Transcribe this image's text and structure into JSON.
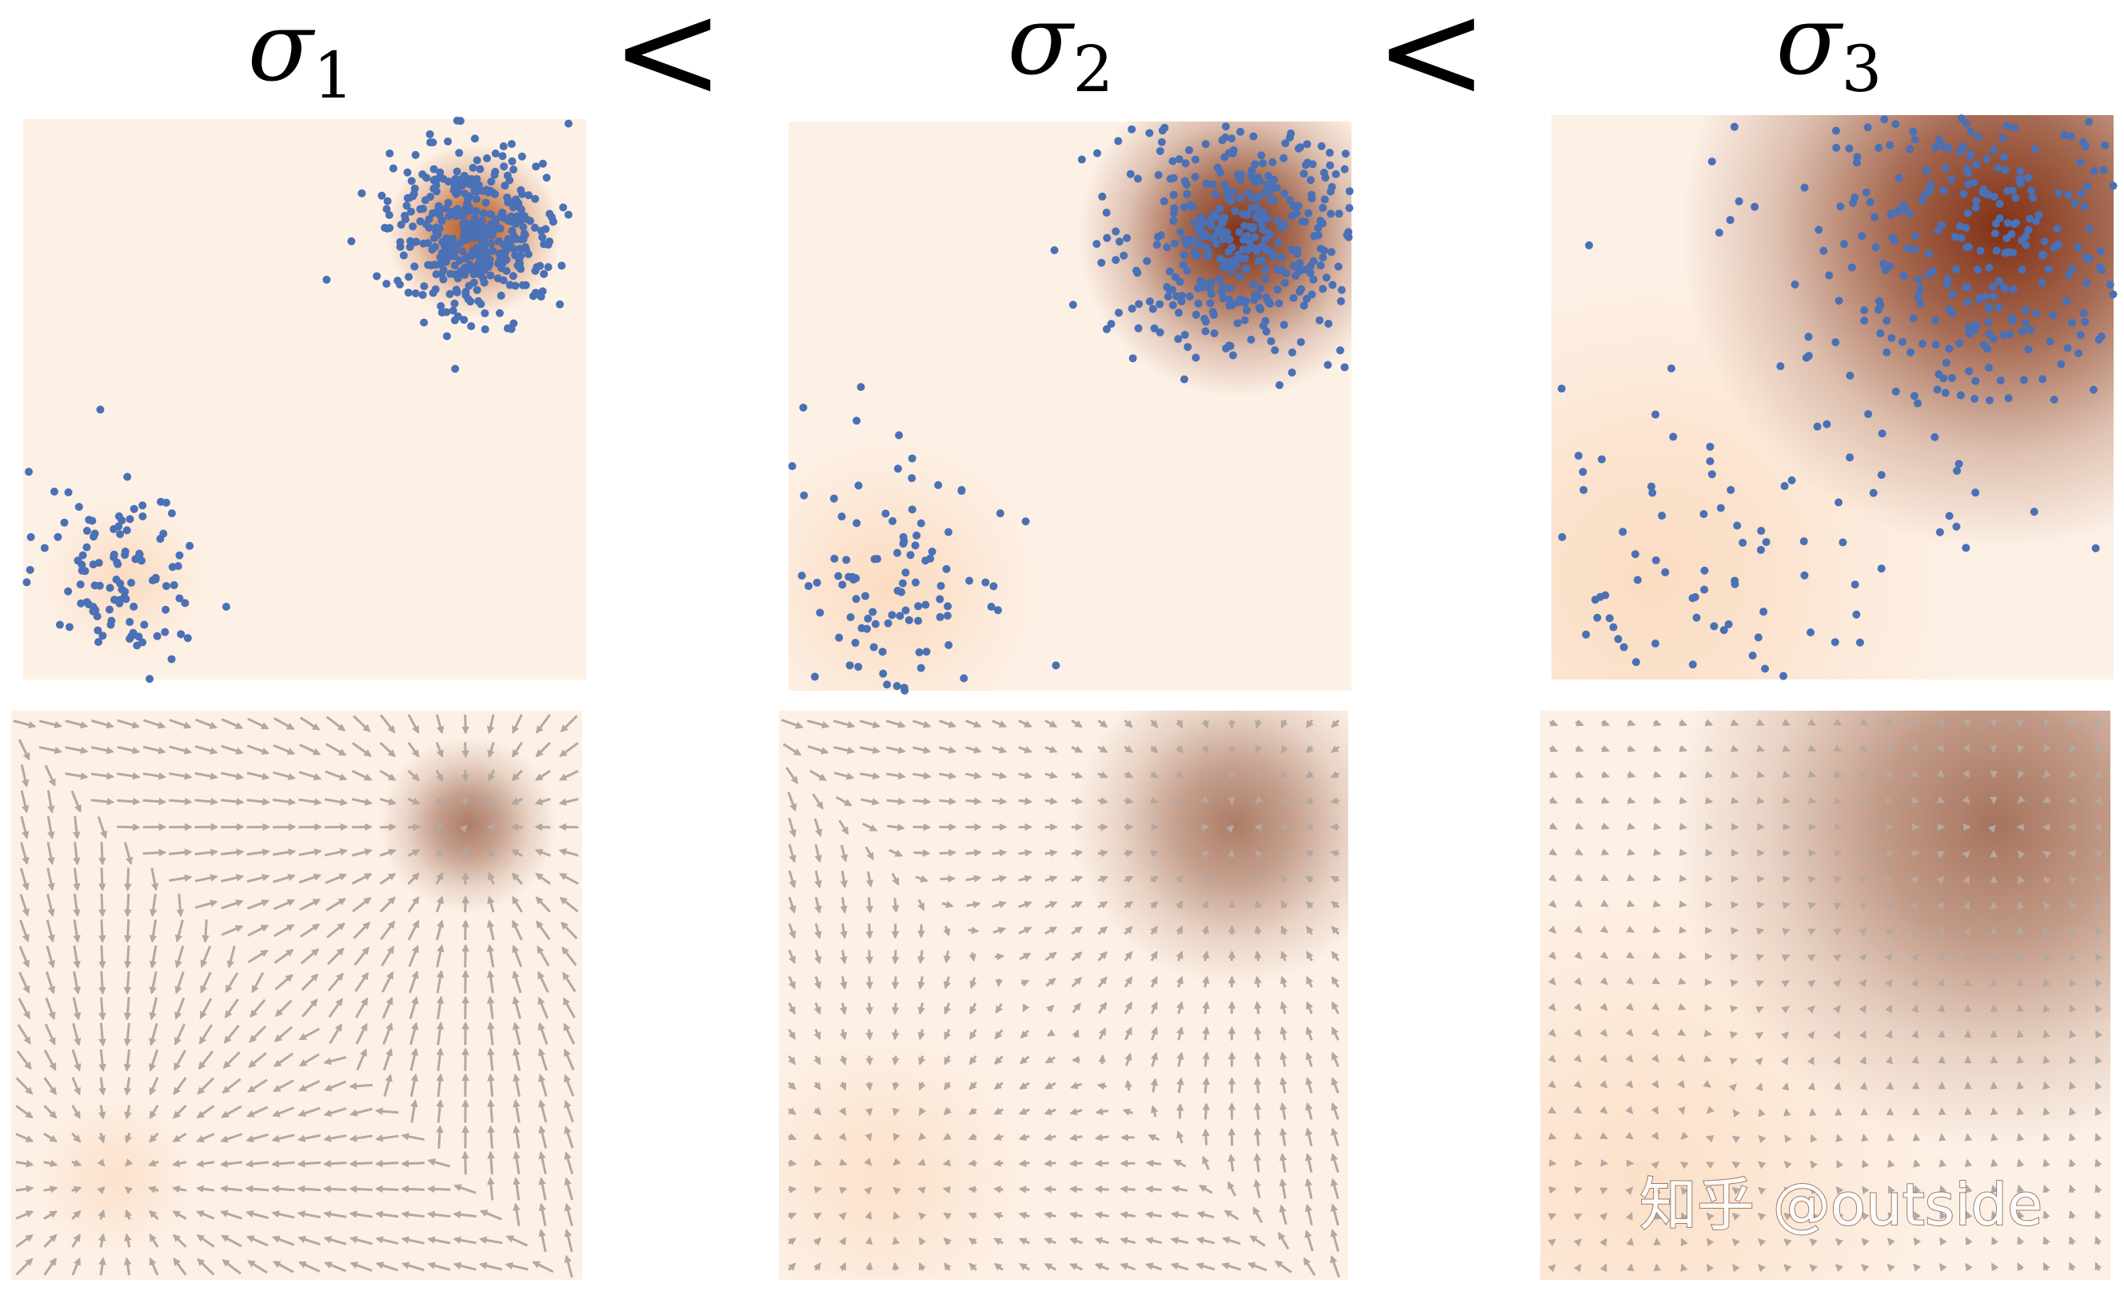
{
  "titles": [
    {
      "symbol": "σ",
      "subscript": "1"
    },
    {
      "symbol": "σ",
      "subscript": "2"
    },
    {
      "symbol": "σ",
      "subscript": "3"
    }
  ],
  "comparators": [
    "<",
    "<"
  ],
  "watermark": "知乎 @outside"
}
